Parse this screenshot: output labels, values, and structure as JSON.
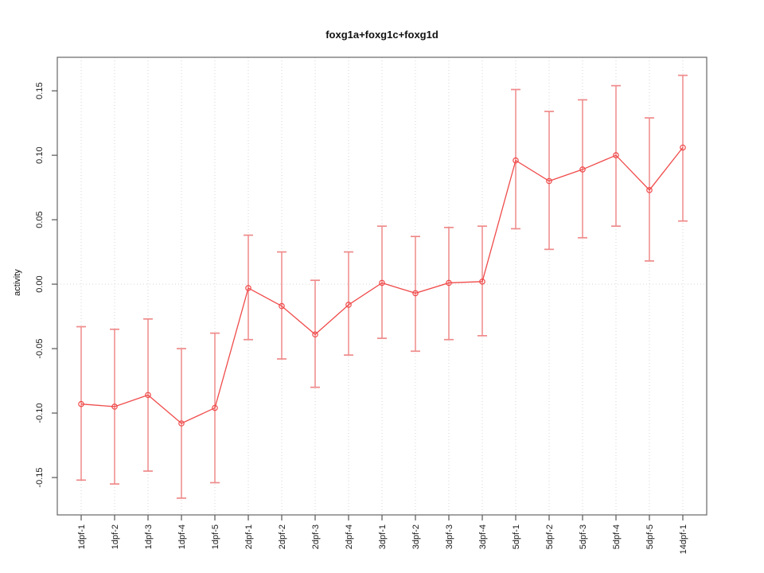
{
  "chart": {
    "title": "foxg1a+foxg1c+foxg1d",
    "ylabel": "activity"
  },
  "chart_data": {
    "type": "line",
    "title": "foxg1a+foxg1c+foxg1d",
    "xlabel": "",
    "ylabel": "activity",
    "legend": "none",
    "categories": [
      "1dpf-1",
      "1dpf-2",
      "1dpf-3",
      "1dpf-4",
      "1dpf-5",
      "2dpf-1",
      "2dpf-2",
      "2dpf-3",
      "2dpf-4",
      "3dpf-1",
      "3dpf-2",
      "3dpf-3",
      "3dpf-4",
      "5dpf-1",
      "5dpf-2",
      "5dpf-3",
      "5dpf-4",
      "5dpf-5",
      "14dpf-1"
    ],
    "series": [
      {
        "name": "activity",
        "values": [
          -0.093,
          -0.095,
          -0.086,
          -0.108,
          -0.096,
          -0.003,
          -0.017,
          -0.039,
          -0.016,
          0.001,
          -0.007,
          0.001,
          0.002,
          0.096,
          0.08,
          0.089,
          0.1,
          0.073,
          0.106
        ],
        "error_high": [
          -0.033,
          -0.035,
          -0.027,
          -0.05,
          -0.038,
          0.038,
          0.025,
          0.003,
          0.025,
          0.045,
          0.037,
          0.044,
          0.045,
          0.151,
          0.134,
          0.143,
          0.154,
          0.129,
          0.162
        ],
        "error_low": [
          -0.152,
          -0.155,
          -0.145,
          -0.166,
          -0.154,
          -0.043,
          -0.058,
          -0.08,
          -0.055,
          -0.042,
          -0.052,
          -0.043,
          -0.04,
          0.043,
          0.027,
          0.036,
          0.045,
          0.018,
          0.049
        ]
      }
    ],
    "ylim": [
      -0.179,
      0.176
    ],
    "yticks": [
      -0.15,
      -0.1,
      -0.05,
      0,
      0.05,
      0.1,
      0.15
    ],
    "ytick_labels": [
      "-0.15",
      "-0.10",
      "-0.05",
      "0.00",
      "0.05",
      "0.10",
      "0.15"
    ],
    "grid": {
      "vertical": "dotted line at every category",
      "horizontal": "dotted line at 0 only"
    },
    "colors": {
      "series": "#f04b4b",
      "error_bar": "#ef8a8a",
      "grid": "#d6d6d6",
      "frame": "#666666",
      "tick": "#555555",
      "text": "#1a1a1a"
    }
  }
}
